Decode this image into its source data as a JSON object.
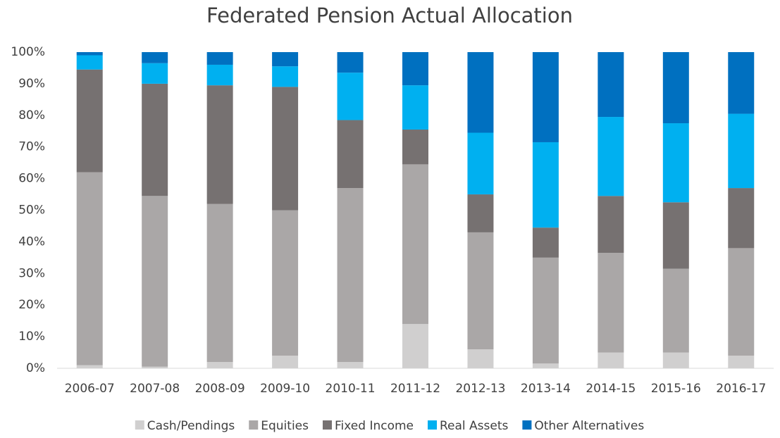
{
  "chart_data": {
    "type": "stacked_bar",
    "title": "Federated Pension Actual Allocation",
    "categories": [
      "2006-07",
      "2007-08",
      "2008-09",
      "2009-10",
      "2010-11",
      "2011-12",
      "2012-13",
      "2013-14",
      "2014-15",
      "2015-16",
      "2016-17"
    ],
    "series": [
      {
        "name": "Cash/Pendings",
        "color": "#d0cfcf",
        "values": [
          1,
          0.5,
          2,
          4,
          2,
          14,
          6,
          1.5,
          5,
          5,
          4
        ]
      },
      {
        "name": "Equities",
        "color": "#aaa7a7",
        "values": [
          61,
          54,
          50,
          46,
          55,
          50.5,
          37,
          33.5,
          31.5,
          26.5,
          34
        ]
      },
      {
        "name": "Fixed Income",
        "color": "#767171",
        "values": [
          32.5,
          35.5,
          37.5,
          39,
          21.5,
          11,
          12,
          9.5,
          18,
          21,
          19
        ]
      },
      {
        "name": "Real Assets",
        "color": "#00b0f0",
        "values": [
          4.5,
          6.5,
          6.5,
          6.5,
          15,
          14,
          19.5,
          27,
          25,
          25,
          23.5
        ]
      },
      {
        "name": "Other Alternatives",
        "color": "#0070c0",
        "values": [
          1,
          3.5,
          4,
          4.5,
          6.5,
          10.5,
          25.5,
          28.5,
          20.5,
          22.5,
          19.5
        ]
      }
    ],
    "ylim": [
      0,
      100
    ],
    "yticks": [
      {
        "value": 0,
        "label": "0%"
      },
      {
        "value": 10,
        "label": "10%"
      },
      {
        "value": 20,
        "label": "20%"
      },
      {
        "value": 30,
        "label": "30%"
      },
      {
        "value": 40,
        "label": "40%"
      },
      {
        "value": 50,
        "label": "50%"
      },
      {
        "value": 60,
        "label": "60%"
      },
      {
        "value": 70,
        "label": "70%"
      },
      {
        "value": 80,
        "label": "80%"
      },
      {
        "value": 90,
        "label": "90%"
      },
      {
        "value": 100,
        "label": "100%"
      }
    ],
    "grid": false,
    "legend": "bottom"
  }
}
